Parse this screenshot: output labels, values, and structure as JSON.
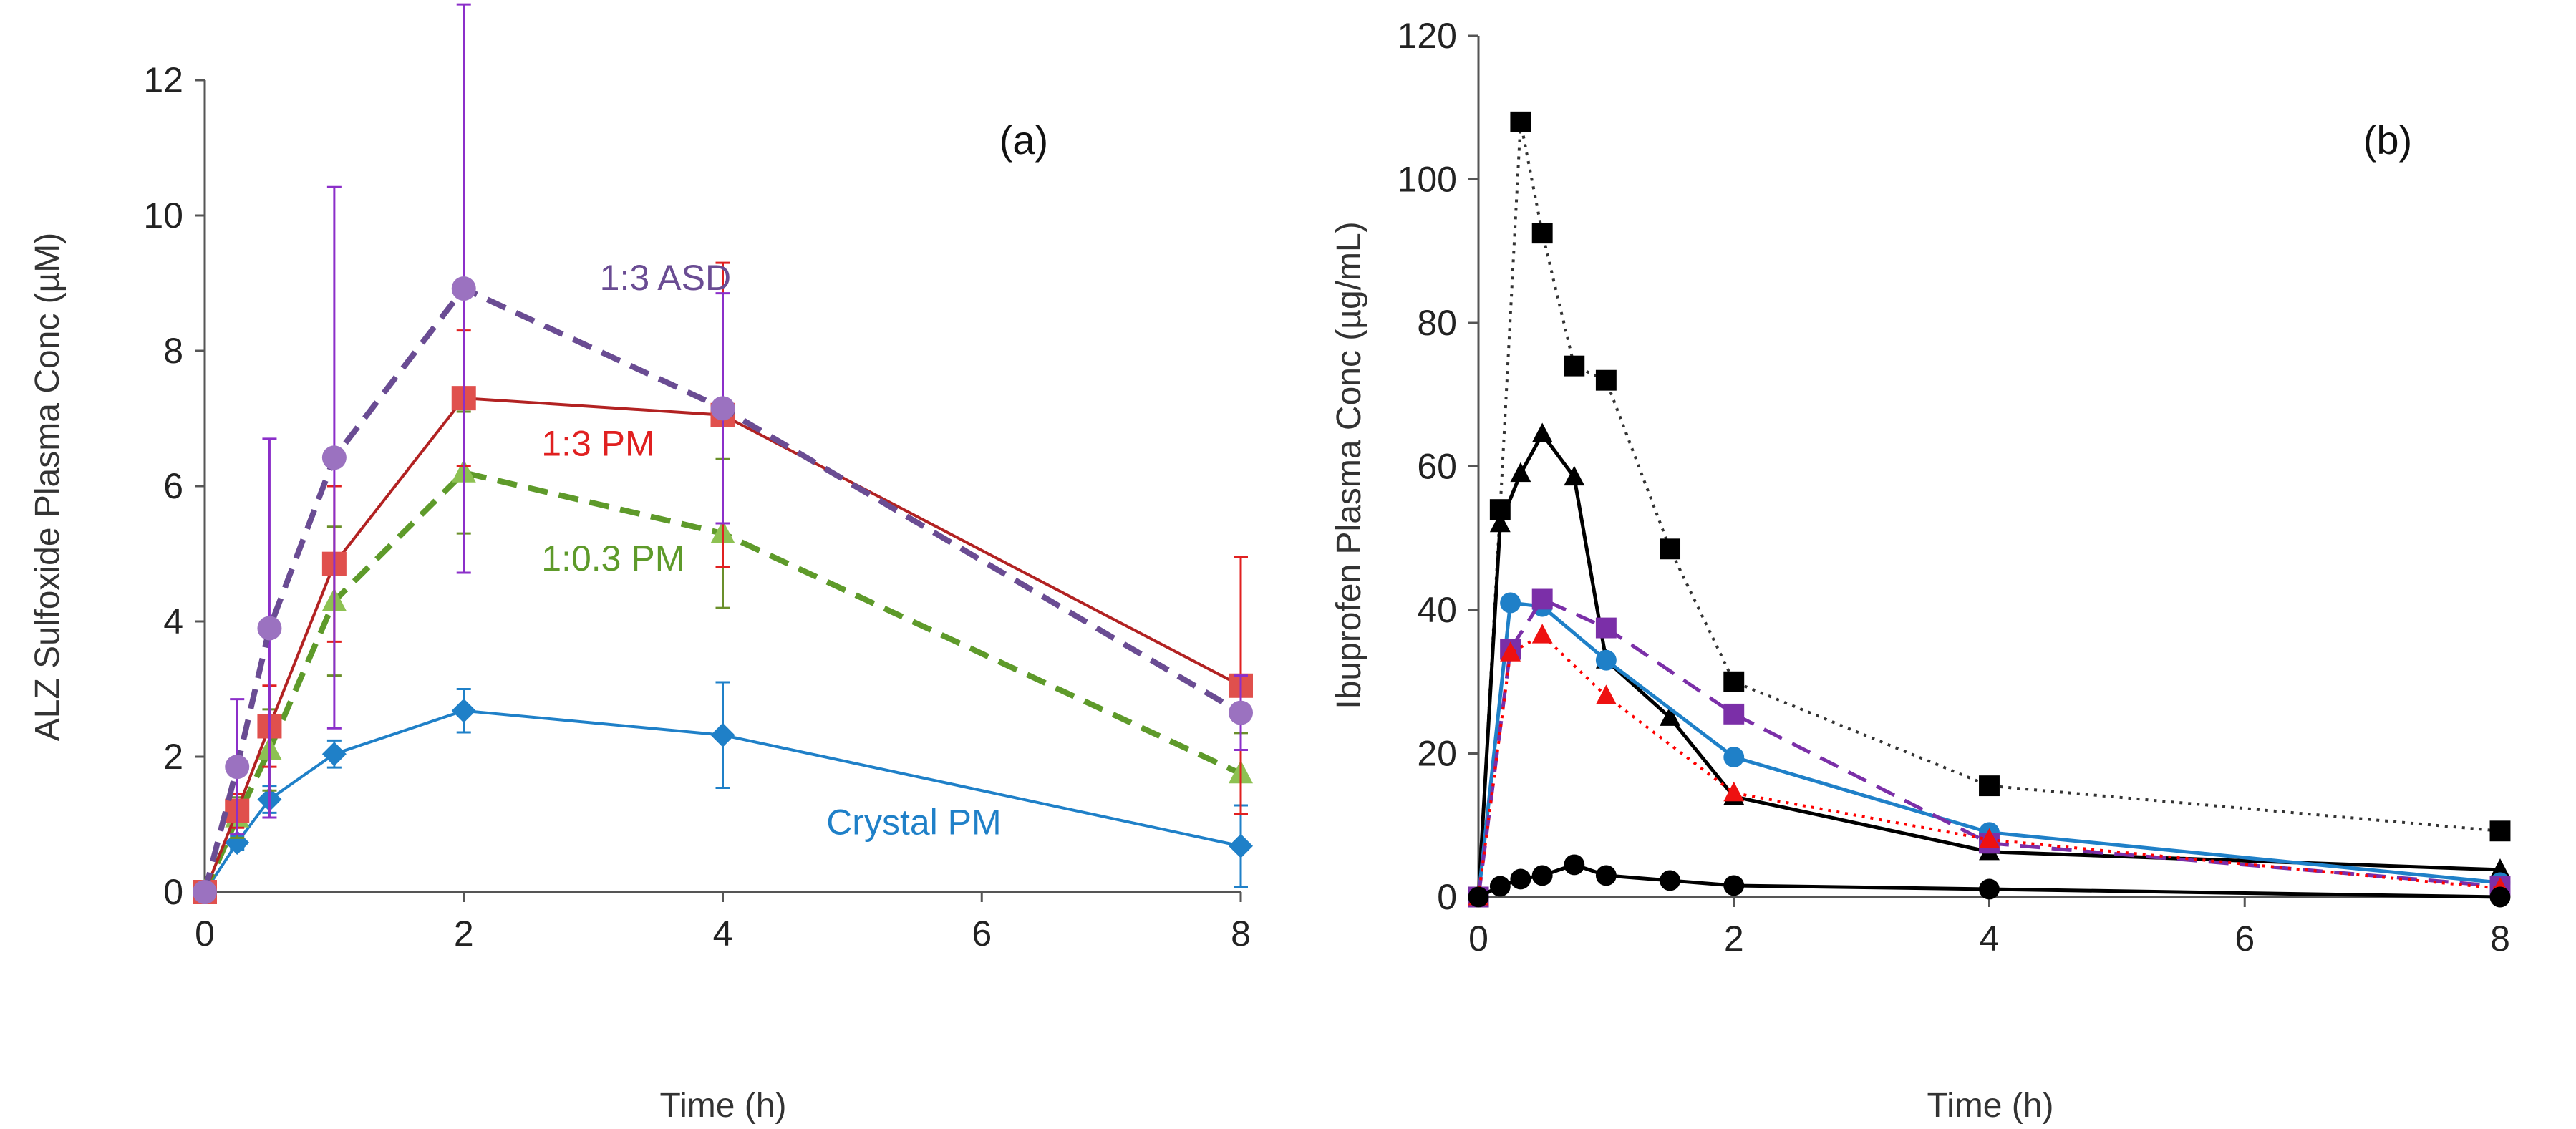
{
  "chart_data": [
    {
      "type": "line",
      "panel_label": "(a)",
      "xlabel": "Time (h)",
      "ylabel": "ALZ Sulfoxide Plasma Conc (µM)",
      "xlim": [
        0,
        8
      ],
      "ylim": [
        0,
        12
      ],
      "xticks": [
        "0",
        "2",
        "4",
        "6",
        "8"
      ],
      "yticks": [
        "0",
        "2",
        "4",
        "6",
        "8",
        "10",
        "12"
      ],
      "grid": false,
      "series": [
        {
          "name": "Crystal PM",
          "marker": "diamond",
          "dash": "solid",
          "line_color": "#1f80c8",
          "marker_color": "#1f80c8",
          "err_color": "#1f80c8",
          "x": [
            0,
            0.25,
            0.5,
            1,
            2,
            4,
            8
          ],
          "y": [
            0,
            0.73,
            1.37,
            2.04,
            2.68,
            2.32,
            0.68
          ],
          "err": [
            0,
            0.1,
            0.2,
            0.2,
            0.32,
            0.78,
            0.6
          ],
          "label_at": [
            4.8,
            0.85
          ],
          "label_color": "#1f80c8"
        },
        {
          "name": "1:0.3 PM",
          "marker": "triangle",
          "dash": "dashed",
          "line_color": "#5e9a2a",
          "marker_color": "#8dc152",
          "err_color": "#6a8f2a",
          "x": [
            0,
            0.25,
            0.5,
            1,
            2,
            4,
            8
          ],
          "y": [
            0,
            1.1,
            2.1,
            4.3,
            6.2,
            5.3,
            1.75
          ],
          "err": [
            0,
            0.3,
            0.6,
            1.1,
            0.9,
            1.1,
            0.6
          ],
          "label_at": [
            2.6,
            4.75
          ],
          "label_color": "#5e9a2a"
        },
        {
          "name": "1:3 PM",
          "marker": "square",
          "dash": "solid",
          "line_color": "#b22222",
          "marker_color": "#e0504d",
          "err_color": "#e02020",
          "x": [
            0,
            0.25,
            0.5,
            1,
            2,
            4,
            8
          ],
          "y": [
            0,
            1.2,
            2.45,
            4.85,
            7.3,
            7.05,
            3.05
          ],
          "err": [
            0,
            0.25,
            0.6,
            1.15,
            1.0,
            2.25,
            1.9
          ],
          "label_at": [
            2.6,
            6.45
          ],
          "label_color": "#e02020"
        },
        {
          "name": "1:3 ASD",
          "marker": "circle",
          "dash": "dashed",
          "line_color": "#6a4c93",
          "marker_color": "#9b72c0",
          "err_color": "#8b2fc9",
          "x": [
            0,
            0.25,
            0.5,
            1,
            2,
            4,
            8
          ],
          "y": [
            0,
            1.85,
            3.9,
            6.42,
            8.92,
            7.15,
            2.65
          ],
          "err": [
            0,
            1.0,
            2.8,
            4.0,
            4.2,
            1.7,
            0.55
          ],
          "label_at": [
            3.05,
            8.9
          ],
          "label_color": "#6a4c93"
        }
      ]
    },
    {
      "type": "line",
      "panel_label": "(b)",
      "xlabel": "Time (h)",
      "ylabel": "Ibuprofen Plasma Conc (µg/mL)",
      "xlim": [
        0,
        8
      ],
      "ylim": [
        0,
        120
      ],
      "xticks": [
        "0",
        "2",
        "4",
        "6",
        "8"
      ],
      "yticks": [
        "0",
        "20",
        "40",
        "60",
        "80",
        "100",
        "120"
      ],
      "grid": false,
      "series": [
        {
          "marker": "square",
          "dash": "dotted",
          "line_color": "#333333",
          "marker_color": "#000000",
          "x": [
            0,
            0.17,
            0.33,
            0.5,
            0.75,
            1,
            1.5,
            2,
            4,
            8
          ],
          "y": [
            0,
            54,
            108,
            92.5,
            74,
            72,
            48.5,
            30,
            15.5,
            9.2
          ]
        },
        {
          "marker": "triangle",
          "dash": "solid",
          "line_color": "#000000",
          "marker_color": "#000000",
          "x": [
            0,
            0.17,
            0.33,
            0.5,
            0.75,
            1,
            1.5,
            2,
            4,
            8
          ],
          "y": [
            0,
            52,
            59,
            64.5,
            58.5,
            33,
            25,
            14,
            6.3,
            3.8
          ]
        },
        {
          "marker": "circle",
          "dash": "solid",
          "line_color": "#1f80c8",
          "marker_color": "#1f80c8",
          "x": [
            0,
            0.25,
            0.5,
            1,
            2,
            4,
            8
          ],
          "y": [
            0,
            41,
            40.5,
            33,
            19.5,
            9,
            2
          ]
        },
        {
          "marker": "square",
          "dash": "dashed",
          "line_color": "#7b2fa8",
          "marker_color": "#7b2fa8",
          "x": [
            0,
            0.25,
            0.5,
            1,
            2,
            4,
            8
          ],
          "y": [
            0,
            34.5,
            41.5,
            37.5,
            25.5,
            7.5,
            1.5
          ]
        },
        {
          "marker": "triangle",
          "dash": "dotted",
          "line_color": "#ff0000",
          "marker_color": "#ee1111",
          "x": [
            0,
            0.25,
            0.5,
            1,
            2,
            4,
            8
          ],
          "y": [
            0,
            34,
            36.5,
            28,
            14.5,
            8,
            1.2
          ]
        },
        {
          "marker": "circle",
          "dash": "solid",
          "line_color": "#000000",
          "marker_color": "#000000",
          "x": [
            0,
            0.17,
            0.33,
            0.5,
            0.75,
            1,
            1.5,
            2,
            4,
            8
          ],
          "y": [
            0,
            1.5,
            2.5,
            3,
            4.5,
            3,
            2.3,
            1.6,
            1.1,
            0
          ]
        }
      ]
    }
  ]
}
